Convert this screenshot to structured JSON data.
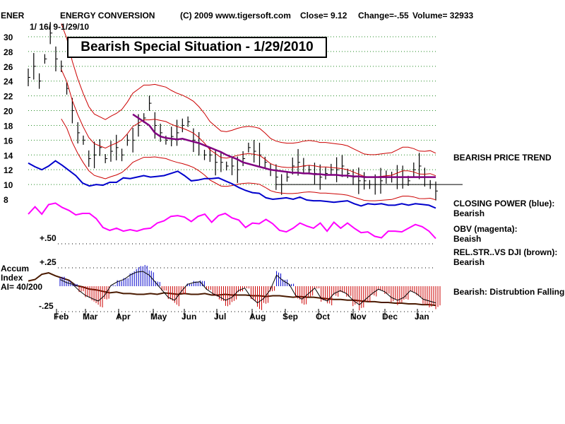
{
  "header": {
    "symbol": "ENER",
    "name": "ENERGY CONVERSION",
    "source": "(C) 2009 www.tigersoft.com",
    "close": "Close=  9.12",
    "change": "Change=-.55",
    "volume": "Volume=  32933",
    "date_range": "1/ 16/ 9-1/29/10"
  },
  "badge": "Bearish Special Situation - 1/29/2010",
  "side_labels": {
    "price_trend": "BEARISH PRICE TREND",
    "closing_power": "CLOSING POWER (blue):",
    "closing_power_status": "Bearish",
    "obv": "OBV (magenta):",
    "obv_status": "Beaish",
    "relstr": "REL.STR..VS DJI (brown):",
    "relstr_status": "Bearish",
    "accum": "Bearish: Distrubtion Falling."
  },
  "accum_label": {
    "line1": "Accum",
    "line2": "Index",
    "line3": "AI= 40/200"
  },
  "colors": {
    "price_bars": "#000000",
    "bands": "#cc0000",
    "moving_average": "#800080",
    "closing_power": "#0000cc",
    "obv": "#ff00ff",
    "relstr": "#4a1a00",
    "accum_pos": "#0000cc",
    "accum_neg": "#cc0000",
    "grid": "#228b22"
  },
  "chart_data": {
    "type": "line",
    "y_ticks": [
      "30",
      "28",
      "26",
      "24",
      "22",
      "20",
      "18",
      "16",
      "14",
      "12",
      "10",
      "8"
    ],
    "y_range": [
      8,
      31
    ],
    "indicator_ticks": [
      "+.50",
      "+.25",
      "-.25"
    ],
    "months": [
      "Feb",
      "Mar",
      "Apr",
      "May",
      "Jun",
      "Jul",
      "Aug",
      "Sep",
      "Oct",
      "Nov",
      "Dec",
      "Jan"
    ],
    "price_close": [
      24.5,
      26,
      24,
      27,
      30.5,
      27,
      26,
      23,
      20,
      17,
      16,
      13.5,
      14,
      15,
      13.5,
      14.5,
      15,
      14,
      16,
      16,
      18,
      19,
      21,
      18,
      17,
      16,
      16.5,
      17,
      18,
      18.5,
      16,
      15.5,
      14,
      14,
      13,
      13,
      12.5,
      12.5,
      12,
      13.5,
      15,
      14.5,
      14,
      13,
      12,
      11,
      10,
      11,
      12.5,
      13,
      12.5,
      12,
      11.5,
      11,
      11.5,
      12,
      12,
      12.5,
      11.5,
      11,
      10.5,
      10.5,
      10,
      10,
      10.5,
      11,
      11,
      11,
      11,
      10.5,
      12,
      12.5,
      11,
      10,
      9.12
    ],
    "moving_average": [
      null,
      null,
      null,
      null,
      null,
      null,
      null,
      null,
      null,
      null,
      null,
      null,
      null,
      null,
      null,
      null,
      null,
      null,
      null,
      19.5,
      19,
      18.5,
      18,
      17,
      16.5,
      16.3,
      16.2,
      16.1,
      16.2,
      16,
      15.8,
      15.6,
      15.3,
      15,
      14.7,
      14.4,
      14,
      13.7,
      13.4,
      13,
      12.8,
      12.6,
      12.4,
      12.2,
      12,
      11.9,
      11.8,
      11.7,
      11.6,
      11.6,
      11.5,
      11.5,
      11.4,
      11.4,
      11.3,
      11.3,
      11.3,
      11.2,
      11.2,
      11.1,
      11.1,
      11,
      11,
      11,
      11,
      11,
      11,
      11,
      11,
      11,
      11,
      11,
      11,
      11,
      11
    ],
    "series": [
      {
        "name": "CLOSING POWER (blue)",
        "level": [
          12.9,
          12.4,
          12,
          12.5,
          13.2,
          12.6,
          11.9,
          11.2,
          10.2,
          9.8,
          10,
          9.9,
          10.3,
          10.3,
          10.9,
          10.8,
          11,
          11.2,
          11,
          11.1,
          11.2,
          11.5,
          11.8,
          11.2,
          10.5,
          10.6,
          10.8,
          10.8,
          10.9,
          10.5,
          10.1,
          9.6,
          9.2,
          8.9,
          8.8,
          8.2,
          8,
          8.1,
          8.2,
          8,
          8.3,
          7.9,
          7.8,
          7.8,
          7.7,
          7.6,
          7.7,
          7.8,
          7.4,
          7.1,
          7.4,
          7.3,
          7.4,
          7.2,
          7.2,
          7.4,
          7.2,
          7.4,
          7.3,
          7.2,
          6.8
        ]
      },
      {
        "name": "OBV (magenta)",
        "level": [
          5.5,
          6.5,
          5.5,
          6.8,
          7,
          6.4,
          6,
          5.4,
          5.6,
          5.6,
          4.9,
          3.7,
          3.3,
          3.6,
          3.2,
          3.4,
          3.2,
          3.5,
          3.6,
          4.3,
          4.6,
          5.2,
          5.3,
          5.1,
          4.5,
          5.2,
          5.5,
          4.4,
          5.3,
          5.6,
          5,
          4.7,
          3.7,
          4.3,
          4.2,
          4.8,
          4.2,
          3.3,
          3.1,
          3.6,
          4.3,
          3.9,
          3.6,
          4.3,
          3.2,
          4.4,
          3.6,
          4.3,
          3.6,
          3,
          3.1,
          2.5,
          2.3,
          3.2,
          3.2,
          3.1,
          3.6,
          4.1,
          3.8,
          3.2,
          2.2
        ]
      },
      {
        "name": "REL.STR..VS DJI (brown)",
        "level": [
          -0.3,
          -0.1,
          0.6,
          0.8,
          0.4,
          0.1,
          -0.2,
          -0.9,
          -1.1,
          -1.4,
          -1.5,
          -1.7,
          -1.9,
          -1.8,
          -2,
          -2,
          -2.1,
          -2.1,
          -2,
          -2.1,
          -1.9,
          -2,
          -2.1,
          -2,
          -2.1,
          -2.1,
          -2,
          -2.2,
          -2.2,
          -2.1,
          -2.2,
          -2.2,
          -2.2,
          -2.3,
          -2.3,
          -2.4,
          -2.3,
          -2.3,
          -2.4,
          -2.5,
          -2.4,
          -2.5,
          -2.5,
          -2.6,
          -2.7,
          -2.8,
          -2.8,
          -2.9,
          -2.9,
          -3,
          -3.1,
          -3.1,
          -3.2,
          -3.2,
          -3.3,
          -3.3,
          -3.4,
          -3.4,
          -3.5,
          -3.5,
          -3.6
        ]
      },
      {
        "name": "Accum Index",
        "values": [
          0.18,
          0.1,
          0.05,
          -0.12,
          -0.25,
          -0.33,
          -0.4,
          -0.25,
          0.02,
          0.12,
          0.18,
          0.3,
          0.38,
          0.4,
          0.3,
          0.1,
          -0.1,
          -0.3,
          -0.38,
          -0.15,
          0.05,
          0.1,
          0.12,
          -0.08,
          -0.2,
          -0.28,
          -0.38,
          -0.3,
          -0.12,
          -0.05,
          -0.3,
          -0.45,
          -0.33,
          -0.1,
          0.3,
          0.15,
          0.05,
          -0.25,
          -0.35,
          -0.2,
          -0.05,
          -0.33,
          -0.4,
          -0.2,
          -0.12,
          -0.2,
          -0.38,
          -0.5,
          -0.35,
          -0.2,
          -0.08,
          -0.15,
          -0.3,
          -0.38,
          -0.3,
          -0.12,
          -0.2,
          -0.35,
          -0.4,
          -0.45
        ]
      }
    ]
  }
}
